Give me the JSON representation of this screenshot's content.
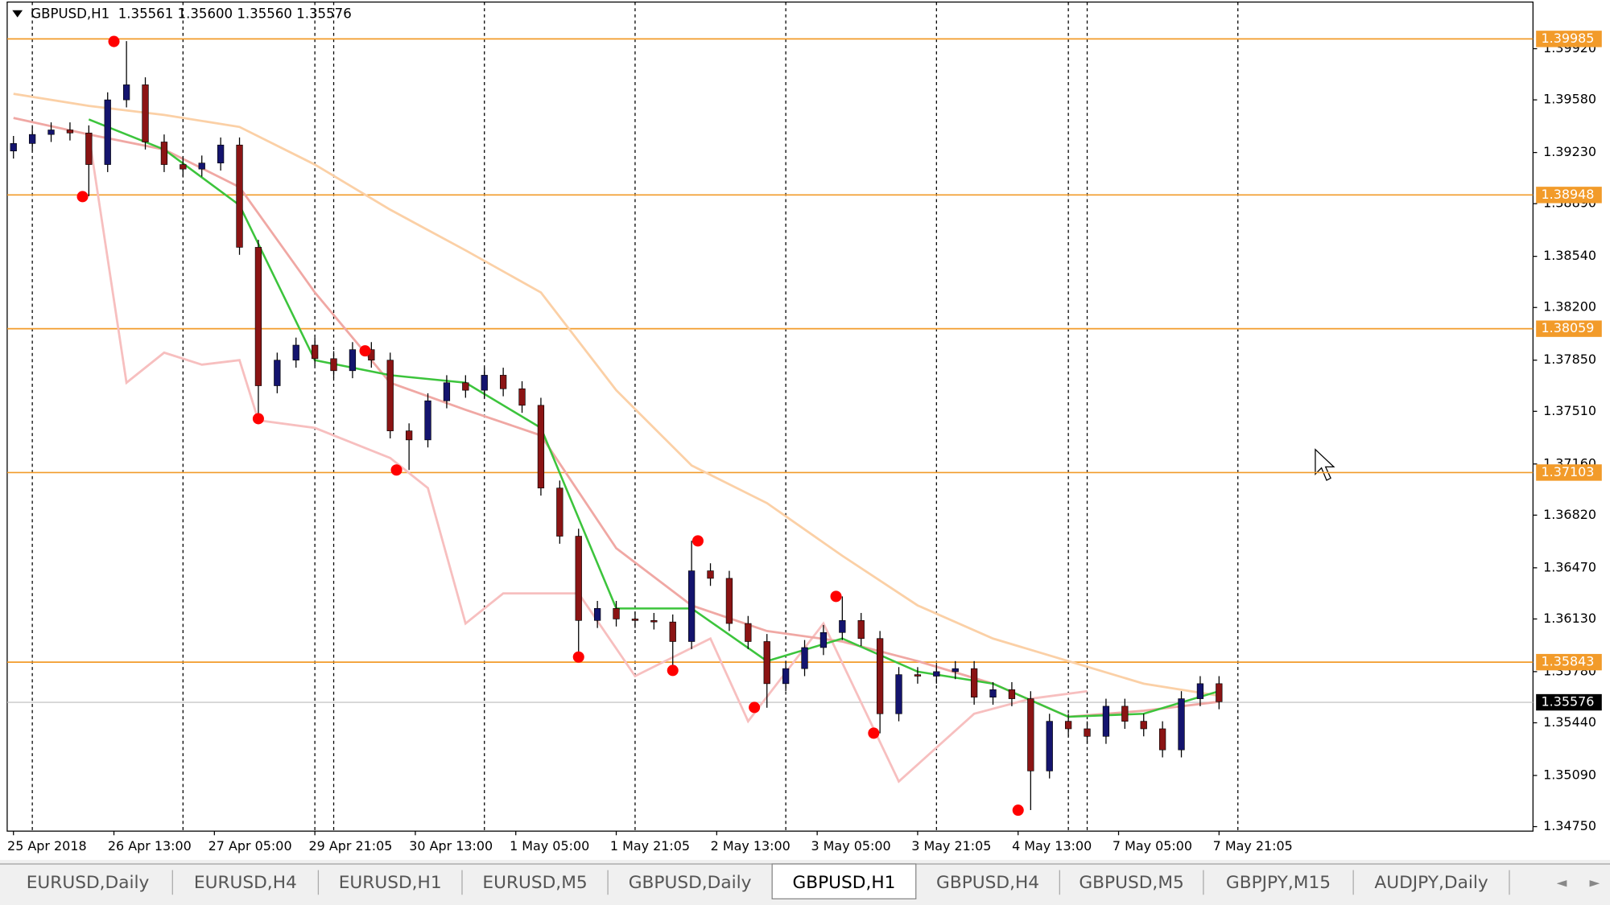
{
  "chart_data": {
    "type": "candlestick",
    "title": "GBPUSD,H1  1.35561 1.35600 1.35560 1.35576",
    "ylim": [
      1.3472,
      1.4023
    ],
    "yticks": [
      {
        "value": 1.3475,
        "label": "1.34750"
      },
      {
        "value": 1.3509,
        "label": "1.35090"
      },
      {
        "value": 1.3544,
        "label": "1.35440"
      },
      {
        "value": 1.3578,
        "label": "1.35780"
      },
      {
        "value": 1.3613,
        "label": "1.36130"
      },
      {
        "value": 1.3647,
        "label": "1.36470"
      },
      {
        "value": 1.3682,
        "label": "1.36820"
      },
      {
        "value": 1.3716,
        "label": "1.37160"
      },
      {
        "value": 1.3751,
        "label": "1.37510"
      },
      {
        "value": 1.3785,
        "label": "1.37850"
      },
      {
        "value": 1.382,
        "label": "1.38200"
      },
      {
        "value": 1.3854,
        "label": "1.38540"
      },
      {
        "value": 1.3889,
        "label": "1.38890"
      },
      {
        "value": 1.3923,
        "label": "1.39230"
      },
      {
        "value": 1.3958,
        "label": "1.39580"
      },
      {
        "value": 1.3992,
        "label": "1.39920"
      }
    ],
    "xlim": [
      -1,
      242
    ],
    "xticks": [
      {
        "value": 0,
        "label": "25 Apr 2018"
      },
      {
        "value": 16,
        "label": "26 Apr 13:00"
      },
      {
        "value": 32,
        "label": "27 Apr 05:00"
      },
      {
        "value": 48,
        "label": "29 Apr 21:05"
      },
      {
        "value": 64,
        "label": "30 Apr 13:00"
      },
      {
        "value": 80,
        "label": "1 May 05:00"
      },
      {
        "value": 96,
        "label": "1 May 21:05"
      },
      {
        "value": 112,
        "label": "2 May 13:00"
      },
      {
        "value": 128,
        "label": "3 May 05:00"
      },
      {
        "value": 144,
        "label": "3 May 21:05"
      },
      {
        "value": 160,
        "label": "4 May 13:00"
      },
      {
        "value": 176,
        "label": "7 May 05:00"
      },
      {
        "value": 192,
        "label": "7 May 21:05"
      }
    ],
    "candles": {
      "up_color": "#14146e",
      "down_color": "#8b1414",
      "x": [
        0,
        3,
        6,
        9,
        12,
        15,
        18,
        21,
        24,
        27,
        30,
        33,
        36,
        39,
        42,
        45,
        48,
        51,
        54,
        57,
        60,
        63,
        66,
        69,
        72,
        75,
        78,
        81,
        84,
        87,
        90,
        93,
        96,
        99,
        102,
        105,
        108,
        111,
        114,
        117,
        120,
        123,
        126,
        129,
        132,
        135,
        138,
        141,
        144,
        147,
        150,
        153,
        156,
        159,
        162,
        165,
        168,
        171,
        174,
        177,
        180,
        183,
        186,
        189,
        192
      ],
      "open": [
        1.3924,
        1.3929,
        1.3935,
        1.3938,
        1.3936,
        1.3915,
        1.3958,
        1.3968,
        1.393,
        1.3915,
        1.3912,
        1.3916,
        1.3928,
        1.386,
        1.3768,
        1.3785,
        1.3795,
        1.3786,
        1.3778,
        1.3792,
        1.3785,
        1.3738,
        1.3732,
        1.3758,
        1.377,
        1.3765,
        1.3775,
        1.3766,
        1.3755,
        1.37,
        1.3668,
        1.3612,
        1.362,
        1.3613,
        1.3612,
        1.3611,
        1.3598,
        1.3645,
        1.364,
        1.361,
        1.3598,
        1.357,
        1.358,
        1.3594,
        1.3604,
        1.3612,
        1.36,
        1.355,
        1.3576,
        1.3575,
        1.3578,
        1.358,
        1.3561,
        1.3566,
        1.356,
        1.3512,
        1.3545,
        1.354,
        1.3535,
        1.3555,
        1.3545,
        1.354,
        1.3526,
        1.356,
        1.357
      ],
      "high": [
        1.3934,
        1.394,
        1.3943,
        1.3943,
        1.3941,
        1.3963,
        1.3997,
        1.3973,
        1.3935,
        1.392,
        1.3921,
        1.3933,
        1.3933,
        1.3865,
        1.379,
        1.38,
        1.38,
        1.3791,
        1.3797,
        1.3797,
        1.379,
        1.3743,
        1.3763,
        1.3775,
        1.3775,
        1.378,
        1.378,
        1.3771,
        1.376,
        1.3705,
        1.3673,
        1.3625,
        1.3625,
        1.3618,
        1.3617,
        1.3616,
        1.3665,
        1.365,
        1.3645,
        1.3615,
        1.3603,
        1.3585,
        1.3599,
        1.3609,
        1.3628,
        1.3617,
        1.3605,
        1.3581,
        1.3581,
        1.3583,
        1.3585,
        1.3585,
        1.3571,
        1.3571,
        1.3565,
        1.355,
        1.355,
        1.3545,
        1.356,
        1.356,
        1.355,
        1.3545,
        1.3565,
        1.3575,
        1.3575
      ],
      "low": [
        1.3919,
        1.3924,
        1.393,
        1.3931,
        1.3894,
        1.391,
        1.3953,
        1.3925,
        1.391,
        1.3907,
        1.3907,
        1.3911,
        1.3855,
        1.3746,
        1.3763,
        1.378,
        1.3781,
        1.3773,
        1.3773,
        1.378,
        1.3733,
        1.3712,
        1.3727,
        1.3753,
        1.376,
        1.376,
        1.3761,
        1.375,
        1.3695,
        1.3663,
        1.3588,
        1.3607,
        1.3608,
        1.3607,
        1.3606,
        1.3579,
        1.3593,
        1.3635,
        1.3605,
        1.3593,
        1.3554,
        1.3565,
        1.3575,
        1.3589,
        1.3599,
        1.3595,
        1.3537,
        1.3545,
        1.357,
        1.357,
        1.3573,
        1.3556,
        1.3556,
        1.3555,
        1.3486,
        1.3507,
        1.3535,
        1.353,
        1.353,
        1.354,
        1.3535,
        1.3521,
        1.3521,
        1.3555,
        1.3553
      ],
      "close": [
        1.3929,
        1.3935,
        1.3938,
        1.3936,
        1.3915,
        1.3958,
        1.3968,
        1.393,
        1.3915,
        1.3912,
        1.3916,
        1.3928,
        1.386,
        1.3768,
        1.3785,
        1.3795,
        1.3786,
        1.3778,
        1.3792,
        1.3785,
        1.3738,
        1.3732,
        1.3758,
        1.377,
        1.3765,
        1.3775,
        1.3766,
        1.3755,
        1.37,
        1.3668,
        1.3612,
        1.362,
        1.3613,
        1.3612,
        1.3611,
        1.3598,
        1.3645,
        1.364,
        1.361,
        1.3598,
        1.357,
        1.358,
        1.3594,
        1.3604,
        1.3612,
        1.36,
        1.355,
        1.3576,
        1.3575,
        1.3578,
        1.358,
        1.3561,
        1.3566,
        1.356,
        1.3512,
        1.3545,
        1.354,
        1.3535,
        1.3555,
        1.3545,
        1.354,
        1.3526,
        1.356,
        1.357,
        1.3558
      ]
    },
    "lines": [
      {
        "color": "#fbd0a6",
        "x": [
          0,
          12,
          24,
          36,
          48,
          60,
          72,
          84,
          96,
          108,
          120,
          132,
          144,
          156,
          168,
          180,
          192
        ],
        "values": [
          1.3962,
          1.3954,
          1.3948,
          1.394,
          1.3915,
          1.3885,
          1.3858,
          1.383,
          1.3765,
          1.3715,
          1.369,
          1.3655,
          1.3622,
          1.36,
          1.3585,
          1.357,
          1.3562
        ]
      },
      {
        "color": "#f7bfbf",
        "x": [
          12,
          18,
          24,
          30,
          36,
          39,
          48,
          60,
          66,
          72,
          78,
          90,
          99,
          111,
          117,
          129,
          141,
          153,
          162,
          171
        ],
        "values": [
          1.3935,
          1.377,
          1.379,
          1.3782,
          1.3785,
          1.3745,
          1.374,
          1.372,
          1.37,
          1.361,
          1.363,
          1.363,
          1.3575,
          1.36,
          1.3545,
          1.361,
          1.3505,
          1.355,
          1.356,
          1.3565
        ]
      },
      {
        "color": "#f0a8a4",
        "x": [
          0,
          12,
          24,
          36,
          48,
          60,
          72,
          84,
          96,
          108,
          120,
          132,
          144,
          156,
          168,
          180,
          192
        ],
        "values": [
          1.3946,
          1.3935,
          1.3925,
          1.39,
          1.383,
          1.377,
          1.3752,
          1.3735,
          1.366,
          1.3622,
          1.3605,
          1.3598,
          1.3585,
          1.357,
          1.3548,
          1.3552,
          1.3558
        ]
      },
      {
        "color": "#3cc43c",
        "x": [
          12,
          24,
          36,
          48,
          60,
          72,
          84,
          96,
          108,
          120,
          132,
          144,
          156,
          168,
          180,
          192
        ],
        "values": [
          1.3945,
          1.3925,
          1.3888,
          1.3785,
          1.3775,
          1.377,
          1.374,
          1.362,
          1.362,
          1.3585,
          1.36,
          1.3578,
          1.357,
          1.3548,
          1.355,
          1.3565
        ]
      }
    ],
    "markers": {
      "color": "#ff0000",
      "x": [
        11,
        16,
        39,
        56,
        61,
        90,
        105,
        109,
        118,
        131,
        137,
        160
      ],
      "values": [
        1.38937,
        1.39968,
        1.37461,
        1.37912,
        1.3712,
        1.35877,
        1.35788,
        1.36649,
        1.35542,
        1.3628,
        1.35371,
        1.34859
      ]
    },
    "vertical_lines": [
      3,
      27,
      48,
      51,
      75,
      99,
      123,
      147,
      168,
      171,
      195
    ],
    "levels": {
      "color": "#f29b2a",
      "items": [
        {
          "value": 1.39985,
          "label": "1.39985"
        },
        {
          "value": 1.38948,
          "label": "1.38948"
        },
        {
          "value": 1.38059,
          "label": "1.38059"
        },
        {
          "value": 1.37103,
          "label": "1.37103"
        },
        {
          "value": 1.35843,
          "label": "1.35843"
        }
      ]
    },
    "current_price": {
      "value": 1.35576,
      "label": "1.35576"
    }
  },
  "tabs": [
    {
      "label": "EURUSD,Daily",
      "active": false
    },
    {
      "label": "EURUSD,H4",
      "active": false
    },
    {
      "label": "EURUSD,H1",
      "active": false
    },
    {
      "label": "EURUSD,M5",
      "active": false
    },
    {
      "label": "GBPUSD,Daily",
      "active": false
    },
    {
      "label": "GBPUSD,H1",
      "active": true
    },
    {
      "label": "GBPUSD,H4",
      "active": false
    },
    {
      "label": "GBPUSD,M5",
      "active": false
    },
    {
      "label": "GBPJPY,M15",
      "active": false
    },
    {
      "label": "AUDJPY,Daily",
      "active": false
    }
  ]
}
